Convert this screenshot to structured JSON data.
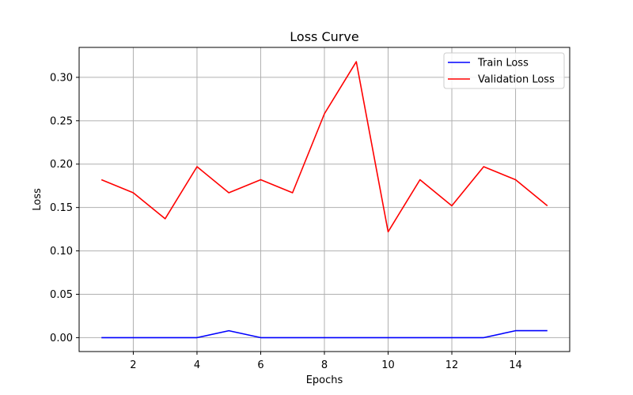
{
  "chart_data": {
    "type": "line",
    "title": "Loss Curve",
    "xlabel": "Epochs",
    "ylabel": "Loss",
    "xlim": [
      0.3,
      15.7
    ],
    "ylim": [
      -0.016,
      0.3345
    ],
    "xticks": [
      2,
      4,
      6,
      8,
      10,
      12,
      14
    ],
    "yticks": [
      0.0,
      0.05,
      0.1,
      0.15,
      0.2,
      0.25,
      0.3
    ],
    "ytick_labels": [
      "0.00",
      "0.05",
      "0.10",
      "0.15",
      "0.20",
      "0.25",
      "0.30"
    ],
    "xtick_labels": [
      "2",
      "4",
      "6",
      "8",
      "10",
      "12",
      "14"
    ],
    "grid": true,
    "legend_position": "top-right",
    "x": [
      1,
      2,
      3,
      4,
      5,
      6,
      7,
      8,
      9,
      10,
      11,
      12,
      13,
      14,
      15
    ],
    "series": [
      {
        "name": "Train Loss",
        "color": "#0000ff",
        "values": [
          0.0,
          0.0,
          0.0,
          0.0,
          0.008,
          0.0,
          0.0,
          0.0,
          0.0,
          0.0,
          0.0,
          0.0,
          0.0,
          0.008,
          0.008
        ]
      },
      {
        "name": "Validation Loss",
        "color": "#ff0000",
        "values": [
          0.182,
          0.167,
          0.137,
          0.197,
          0.167,
          0.182,
          0.167,
          0.258,
          0.318,
          0.122,
          0.182,
          0.152,
          0.197,
          0.182,
          0.152
        ]
      }
    ]
  }
}
